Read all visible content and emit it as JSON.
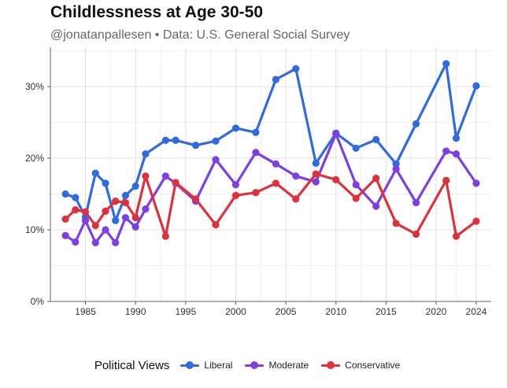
{
  "chart_data": {
    "type": "line",
    "title": "Childlessness at Age 30-50",
    "subtitle": "@jonatanpallesen • Data: U.S. General Social Survey",
    "xlabel": "",
    "ylabel": "",
    "xlim": [
      1981.5,
      2025.5
    ],
    "ylim": [
      0,
      35.5
    ],
    "x_ticks": [
      1985,
      1990,
      1995,
      2000,
      2005,
      2010,
      2015,
      2020,
      2024
    ],
    "x_tick_labels": [
      "1985",
      "1990",
      "1995",
      "2000",
      "2005",
      "2010",
      "2015",
      "2020",
      "2024"
    ],
    "y_ticks": [
      0,
      10,
      20,
      30
    ],
    "y_tick_labels": [
      "0%",
      "10%",
      "20%",
      "30%"
    ],
    "legend_title": "Political Views",
    "legend_position": "bottom",
    "series": [
      {
        "name": "Liberal",
        "color": "#2f6ae0",
        "x": [
          1983,
          1984,
          1985,
          1986,
          1987,
          1988,
          1989,
          1990,
          1991,
          1993,
          1994,
          1996,
          1998,
          2000,
          2002,
          2004,
          2006,
          2008,
          2010,
          2012,
          2014,
          2016,
          2018,
          2021,
          2022,
          2024
        ],
        "values": [
          15.0,
          14.5,
          11.8,
          17.9,
          16.5,
          11.3,
          14.8,
          16.1,
          20.6,
          22.5,
          22.5,
          21.8,
          22.4,
          24.2,
          23.6,
          31.0,
          32.5,
          19.3,
          23.5,
          21.4,
          22.6,
          19.2,
          24.8,
          33.2,
          22.8,
          30.1
        ]
      },
      {
        "name": "Moderate",
        "color": "#7b3fe4",
        "x": [
          1983,
          1984,
          1985,
          1986,
          1987,
          1988,
          1989,
          1990,
          1991,
          1993,
          1994,
          1996,
          1998,
          2000,
          2002,
          2004,
          2006,
          2008,
          2010,
          2012,
          2014,
          2016,
          2018,
          2021,
          2022,
          2024
        ],
        "values": [
          9.2,
          8.3,
          11.3,
          8.2,
          10.0,
          8.2,
          11.7,
          10.4,
          12.9,
          17.5,
          16.5,
          14.0,
          19.8,
          16.3,
          20.8,
          19.2,
          17.5,
          16.7,
          23.4,
          16.3,
          13.3,
          18.5,
          13.8,
          21.0,
          20.6,
          16.5
        ]
      },
      {
        "name": "Conservative",
        "color": "#e0303c",
        "x": [
          1983,
          1984,
          1985,
          1986,
          1987,
          1988,
          1989,
          1990,
          1991,
          1993,
          1994,
          1996,
          1998,
          2000,
          2002,
          2004,
          2006,
          2008,
          2010,
          2012,
          2014,
          2016,
          2018,
          2021,
          2022,
          2024
        ],
        "values": [
          11.5,
          12.8,
          12.5,
          10.6,
          12.6,
          14.0,
          13.8,
          11.7,
          17.5,
          9.1,
          16.6,
          14.3,
          10.7,
          14.8,
          15.2,
          16.5,
          14.3,
          17.8,
          17.0,
          14.4,
          17.2,
          10.9,
          9.4,
          16.9,
          9.1,
          11.2
        ]
      }
    ]
  }
}
